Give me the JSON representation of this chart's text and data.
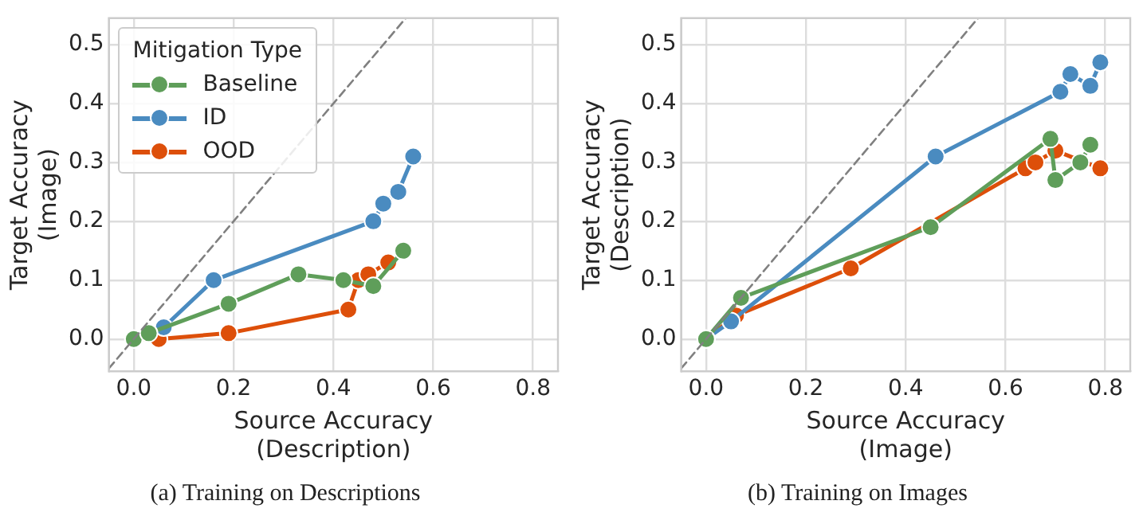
{
  "chart_data": [
    {
      "type": "line",
      "xlabel": "Source Accuracy\n(Description)",
      "ylabel": "Target Accuracy\n(Image)",
      "legend_title": "Mitigation Type",
      "legend": "top left",
      "grid": true,
      "marker": "circle",
      "line_style": "solid",
      "xlim": [
        -0.05,
        0.85
      ],
      "ylim": [
        -0.055,
        0.545
      ],
      "xticks": [
        {
          "value": 0,
          "label": "0.0"
        },
        0.2,
        0.4,
        0.6,
        0.8
      ],
      "yticks": [
        {
          "value": 0,
          "label": "0.0"
        },
        0.1,
        0.2,
        0.3,
        0.4,
        0.5
      ],
      "annotations": [
        "(a) Training on Descriptions"
      ],
      "series": [
        {
          "type": "line",
          "color": "#808080",
          "line_style": "dashed",
          "marker": "none",
          "x": [
            -0.05,
            0.545
          ],
          "values": [
            -0.05,
            0.545
          ]
        },
        {
          "name": "Baseline",
          "color": "#5f9e5a",
          "x": [
            0,
            0.03,
            0.19,
            0.33,
            0.42,
            0.48,
            0.54
          ],
          "values": [
            0,
            0.01,
            0.06,
            0.11,
            0.1,
            0.09,
            0.15
          ]
        },
        {
          "name": "ID",
          "color": "#4a8bc0",
          "x": [
            0,
            0.06,
            0.16,
            0.48,
            0.5,
            0.53,
            0.56
          ],
          "values": [
            0,
            0.02,
            0.1,
            0.2,
            0.23,
            0.25,
            0.31
          ]
        },
        {
          "name": "OOD",
          "color": "#dd4f0a",
          "x": [
            0,
            0.05,
            0.19,
            0.43,
            0.45,
            0.47,
            0.51
          ],
          "values": [
            0,
            0,
            0.01,
            0.05,
            0.1,
            0.11,
            0.13
          ]
        }
      ]
    },
    {
      "type": "line",
      "xlabel": "Source Accuracy\n(Image)",
      "ylabel": "Target Accuracy\n(Description)",
      "grid": true,
      "marker": "circle",
      "line_style": "solid",
      "xlim": [
        -0.05,
        0.85
      ],
      "ylim": [
        -0.055,
        0.545
      ],
      "xticks": [
        {
          "value": 0,
          "label": "0.0"
        },
        0.2,
        0.4,
        0.6,
        0.8
      ],
      "yticks": [
        {
          "value": 0,
          "label": "0.0"
        },
        0.1,
        0.2,
        0.3,
        0.4,
        0.5
      ],
      "annotations": [
        "(b) Training on Images"
      ],
      "series": [
        {
          "type": "line",
          "color": "#808080",
          "line_style": "dashed",
          "marker": "none",
          "x": [
            -0.05,
            0.545
          ],
          "values": [
            -0.05,
            0.545
          ]
        },
        {
          "color": "#5f9e5a",
          "x": [
            0,
            0.07,
            0.45,
            0.69,
            0.7,
            0.75,
            0.77
          ],
          "values": [
            0,
            0.07,
            0.19,
            0.34,
            0.27,
            0.3,
            0.33
          ]
        },
        {
          "color": "#4a8bc0",
          "x": [
            0,
            0.05,
            0.46,
            0.71,
            0.73,
            0.77,
            0.79
          ],
          "values": [
            0,
            0.03,
            0.31,
            0.42,
            0.45,
            0.43,
            0.47
          ]
        },
        {
          "color": "#dd4f0a",
          "x": [
            0,
            0.06,
            0.29,
            0.64,
            0.66,
            0.7,
            0.79
          ],
          "values": [
            0,
            0.04,
            0.12,
            0.29,
            0.3,
            0.32,
            0.29
          ]
        }
      ]
    }
  ]
}
